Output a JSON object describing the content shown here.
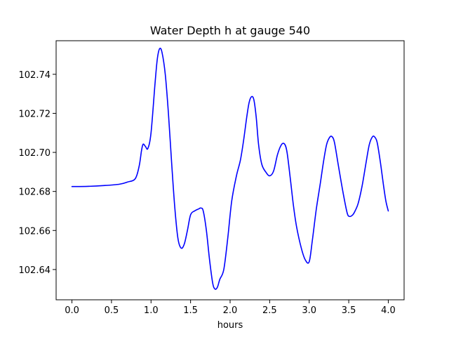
{
  "chart_data": {
    "type": "line",
    "title": "Water Depth h at gauge 540",
    "xlabel": "hours",
    "ylabel": "",
    "xlim": [
      -0.2,
      4.2
    ],
    "ylim": [
      102.6245,
      102.7572
    ],
    "xticks": [
      0.0,
      0.5,
      1.0,
      1.5,
      2.0,
      2.5,
      3.0,
      3.5,
      4.0
    ],
    "xtick_labels": [
      "0.0",
      "0.5",
      "1.0",
      "1.5",
      "2.0",
      "2.5",
      "3.0",
      "3.5",
      "4.0"
    ],
    "yticks": [
      102.64,
      102.66,
      102.68,
      102.7,
      102.72,
      102.74
    ],
    "ytick_labels": [
      "102.64",
      "102.66",
      "102.68",
      "102.70",
      "102.72",
      "102.74"
    ],
    "grid": false,
    "legend": "none",
    "series": [
      {
        "color": "#0000ff",
        "x": [
          0.0,
          0.2,
          0.4,
          0.6,
          0.7,
          0.8,
          0.85,
          0.88,
          0.9,
          0.93,
          0.96,
          1.0,
          1.05,
          1.08,
          1.11,
          1.14,
          1.18,
          1.22,
          1.26,
          1.3,
          1.34,
          1.38,
          1.42,
          1.46,
          1.5,
          1.55,
          1.6,
          1.63,
          1.66,
          1.7,
          1.74,
          1.78,
          1.81,
          1.84,
          1.87,
          1.92,
          1.97,
          2.02,
          2.08,
          2.13,
          2.17,
          2.21,
          2.24,
          2.27,
          2.3,
          2.33,
          2.36,
          2.4,
          2.45,
          2.5,
          2.55,
          2.6,
          2.65,
          2.69,
          2.72,
          2.76,
          2.8,
          2.84,
          2.9,
          2.95,
          3.0,
          3.04,
          3.09,
          3.14,
          3.18,
          3.22,
          3.26,
          3.29,
          3.32,
          3.37,
          3.43,
          3.48,
          3.51,
          3.55,
          3.58,
          3.62,
          3.67,
          3.72,
          3.76,
          3.8,
          3.83,
          3.86,
          3.9,
          3.94,
          3.97,
          4.0
        ],
        "y": [
          102.6825,
          102.6826,
          102.683,
          102.6837,
          102.6848,
          102.6865,
          102.693,
          102.701,
          102.7042,
          102.703,
          102.702,
          102.71,
          102.735,
          102.748,
          102.7532,
          102.751,
          102.74,
          102.72,
          102.695,
          102.672,
          102.656,
          102.651,
          102.653,
          102.66,
          102.668,
          102.67,
          102.671,
          102.6715,
          102.67,
          102.66,
          102.645,
          102.633,
          102.63,
          102.631,
          102.635,
          102.64,
          102.656,
          102.675,
          102.688,
          102.696,
          102.706,
          102.718,
          102.7255,
          102.7285,
          102.727,
          102.718,
          102.704,
          102.694,
          102.69,
          102.688,
          102.6905,
          102.699,
          102.704,
          102.7042,
          102.7,
          102.687,
          102.673,
          102.662,
          102.651,
          102.645,
          102.644,
          102.655,
          102.671,
          102.684,
          102.695,
          102.704,
          102.7078,
          102.708,
          102.705,
          102.693,
          102.679,
          102.669,
          102.6672,
          102.668,
          102.67,
          102.674,
          102.683,
          102.695,
          102.704,
          102.708,
          102.7078,
          102.705,
          102.695,
          102.683,
          102.675,
          102.67
        ]
      }
    ]
  }
}
